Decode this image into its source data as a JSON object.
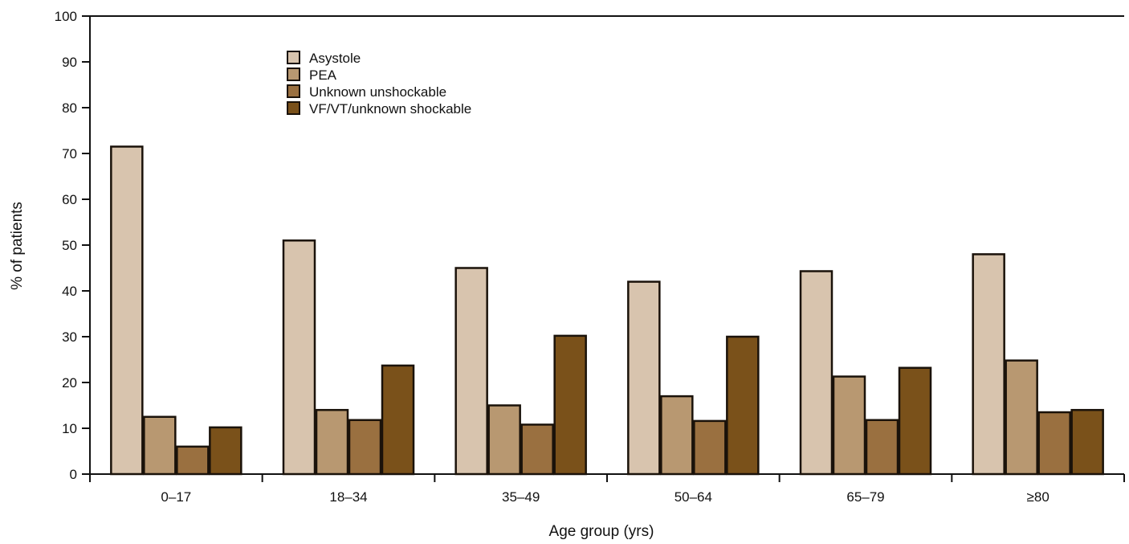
{
  "chart_data": {
    "type": "bar",
    "xlabel": "Age group (yrs)",
    "ylabel": "% of patients",
    "ylim": [
      0,
      100
    ],
    "yticks": [
      0,
      10,
      20,
      30,
      40,
      50,
      60,
      70,
      80,
      90,
      100
    ],
    "categories": [
      "0–17",
      "18–34",
      "35–49",
      "50–64",
      "65–79",
      "≥80"
    ],
    "series": [
      {
        "name": "Asystole",
        "color": "#d8c4ae",
        "values": [
          71.5,
          51,
          45,
          42,
          44.3,
          48
        ]
      },
      {
        "name": "PEA",
        "color": "#b89871",
        "values": [
          12.5,
          14,
          15,
          17,
          21.3,
          24.8
        ]
      },
      {
        "name": "Unknown unshockable",
        "color": "#9a7040",
        "values": [
          6,
          11.8,
          10.8,
          11.6,
          11.8,
          13.5
        ]
      },
      {
        "name": "VF/VT/unknown shockable",
        "color": "#7a511a",
        "values": [
          10.2,
          23.7,
          30.2,
          30,
          23.2,
          14
        ]
      }
    ],
    "grid": false,
    "legend_position": "top-left"
  }
}
